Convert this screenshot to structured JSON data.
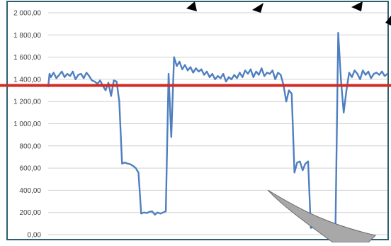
{
  "chart_data": {
    "type": "line",
    "title": "",
    "xlabel": "",
    "ylabel": "",
    "ylim": [
      0,
      2000
    ],
    "y_ticks": [
      0,
      200,
      400,
      600,
      800,
      1000,
      1200,
      1400,
      1600,
      1800,
      2000
    ],
    "y_tick_labels": [
      "0,00",
      "200,00",
      "400,00",
      "600,00",
      "800,00",
      "1 000,00",
      "1 200,00",
      "1 400,00",
      "1 600,00",
      "1 800,00",
      "2 000,00"
    ],
    "grid": true,
    "legend": "none",
    "x": [
      0,
      0.5,
      1,
      2,
      3,
      4,
      5,
      6,
      7,
      8,
      9,
      10,
      11,
      12,
      13,
      14,
      15,
      16,
      17,
      18,
      19,
      20,
      21,
      22,
      23,
      24,
      25,
      26,
      27,
      28,
      29,
      30,
      31,
      32,
      33,
      34,
      35,
      36,
      37,
      38,
      39,
      40,
      41,
      42,
      43,
      44,
      45,
      46,
      47,
      48,
      49,
      50,
      51,
      52,
      53,
      54,
      55,
      56,
      57,
      58,
      59,
      60,
      61,
      62,
      63,
      64,
      65,
      66,
      67,
      68,
      69,
      70,
      71,
      72,
      73,
      74,
      75,
      76,
      77,
      78,
      79,
      80,
      81,
      82,
      83,
      84,
      85,
      86,
      87,
      88,
      89,
      90,
      91,
      92,
      93,
      94,
      95,
      96,
      97,
      98,
      99,
      100,
      101,
      102,
      103,
      104,
      105,
      106,
      107,
      108,
      109,
      110,
      111,
      112,
      113,
      114,
      115,
      116,
      117,
      118,
      119,
      120,
      121,
      122,
      123,
      124
    ],
    "series": [
      {
        "values": [
          1330,
          1450,
          1420,
          1460,
          1410,
          1440,
          1470,
          1420,
          1450,
          1430,
          1470,
          1400,
          1440,
          1450,
          1410,
          1460,
          1430,
          1390,
          1380,
          1360,
          1390,
          1340,
          1300,
          1370,
          1250,
          1390,
          1380,
          1200,
          640,
          650,
          640,
          635,
          620,
          600,
          560,
          190,
          200,
          195,
          205,
          210,
          180,
          200,
          190,
          200,
          210,
          1450,
          880,
          1600,
          1520,
          1560,
          1490,
          1530,
          1480,
          1510,
          1460,
          1500,
          1470,
          1490,
          1440,
          1470,
          1420,
          1450,
          1400,
          1430,
          1410,
          1450,
          1380,
          1420,
          1400,
          1440,
          1410,
          1460,
          1420,
          1480,
          1450,
          1490,
          1420,
          1470,
          1440,
          1500,
          1430,
          1460,
          1450,
          1480,
          1400,
          1460,
          1440,
          1350,
          1200,
          1300,
          1270,
          560,
          650,
          660,
          580,
          640,
          660,
          60,
          70,
          65,
          55,
          80,
          70,
          60,
          50,
          80,
          60,
          1820,
          1400,
          1100,
          1300,
          1460,
          1420,
          1480,
          1450,
          1400,
          1480,
          1440,
          1470,
          1410,
          1450,
          1460,
          1440,
          1470,
          1430,
          1450
        ],
        "color": "#4f7fc0"
      }
    ],
    "reference_line": {
      "value": 1345,
      "color": "#d42a24"
    }
  }
}
